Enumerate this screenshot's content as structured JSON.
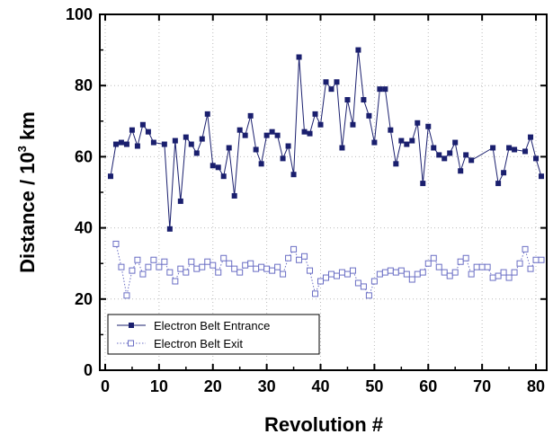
{
  "colors": {
    "entrance": "#1a1f6e",
    "exit": "#6a6ec4",
    "grid": "#bbbbbb"
  },
  "chart_data": {
    "type": "line",
    "xlabel": "Revolution #",
    "ylabel_main": "Distance / 10",
    "ylabel_sup": "3",
    "ylabel_unit": " km",
    "xlim": [
      -1,
      82
    ],
    "ylim": [
      0,
      100
    ],
    "xticks": [
      0,
      10,
      20,
      30,
      40,
      50,
      60,
      70,
      80
    ],
    "yticks": [
      0,
      20,
      40,
      60,
      80,
      100
    ],
    "grid": true,
    "legend_position": "bottom-left",
    "series": [
      {
        "name": "Electron Belt Entrance",
        "marker": "filled-square",
        "line": "solid",
        "x": [
          1,
          2,
          3,
          4,
          5,
          6,
          7,
          8,
          9,
          11,
          12,
          13,
          14,
          15,
          16,
          17,
          18,
          19,
          20,
          21,
          22,
          23,
          24,
          25,
          26,
          27,
          28,
          29,
          30,
          31,
          32,
          33,
          34,
          35,
          36,
          37,
          38,
          39,
          40,
          41,
          42,
          43,
          44,
          45,
          46,
          47,
          48,
          49,
          50,
          51,
          52,
          53,
          54,
          55,
          56,
          57,
          58,
          59,
          60,
          61,
          62,
          63,
          64,
          65,
          66,
          67,
          68,
          72,
          73,
          74,
          75,
          76,
          78,
          79,
          80,
          81
        ],
        "values": [
          54.5,
          63.5,
          64,
          63.5,
          67.5,
          63,
          69,
          67,
          64,
          63.5,
          39.7,
          64.5,
          47.5,
          65.5,
          63.5,
          61,
          65,
          72,
          57.5,
          57,
          54.5,
          62.5,
          49,
          67.5,
          66,
          71.5,
          62,
          58,
          66,
          67,
          66,
          59.5,
          63,
          55,
          88,
          67,
          66.5,
          72,
          69,
          81,
          79,
          81,
          62.5,
          76,
          69,
          90,
          76,
          71.5,
          64,
          79,
          79,
          67.5,
          58,
          64.5,
          63.5,
          64.5,
          69.5,
          52.5,
          68.5,
          62.5,
          60.5,
          59.5,
          61,
          64,
          56,
          60.5,
          59,
          62.5,
          52.5,
          55.5,
          62.5,
          62,
          61.5,
          65.5,
          59.5,
          54.5
        ]
      },
      {
        "name": "Electron Belt Exit",
        "marker": "open-square",
        "line": "dotted",
        "x": [
          2,
          3,
          4,
          5,
          6,
          7,
          8,
          9,
          10,
          11,
          12,
          13,
          14,
          15,
          16,
          17,
          18,
          19,
          20,
          21,
          22,
          23,
          24,
          25,
          26,
          27,
          28,
          29,
          30,
          31,
          32,
          33,
          34,
          35,
          36,
          37,
          38,
          39,
          40,
          41,
          42,
          43,
          44,
          45,
          46,
          47,
          48,
          49,
          50,
          51,
          52,
          53,
          54,
          55,
          56,
          57,
          58,
          59,
          60,
          61,
          62,
          63,
          64,
          65,
          66,
          67,
          68,
          69,
          70,
          71,
          72,
          73,
          74,
          75,
          76,
          77,
          78,
          79,
          80,
          81
        ],
        "values": [
          35.5,
          29,
          21,
          28,
          31,
          27,
          29,
          31,
          29,
          30.5,
          27.5,
          25,
          28.5,
          27.5,
          30.5,
          28.5,
          29,
          30.5,
          29.5,
          27.5,
          31.5,
          30,
          28.5,
          27.5,
          29.5,
          30,
          28.5,
          29,
          28.5,
          28,
          29,
          27,
          31.5,
          34,
          31,
          32,
          28,
          21.5,
          25,
          26,
          27,
          26.5,
          27.5,
          27,
          28,
          24.5,
          23.5,
          21,
          25,
          27,
          27.5,
          28,
          27.5,
          28,
          27,
          25.5,
          27,
          27.5,
          30,
          31.5,
          29,
          27.5,
          26.5,
          27.5,
          30.5,
          31.5,
          27,
          29,
          29,
          29,
          26,
          26.5,
          27.5,
          26,
          27.5,
          30,
          34,
          28.5,
          31,
          31
        ]
      }
    ]
  }
}
